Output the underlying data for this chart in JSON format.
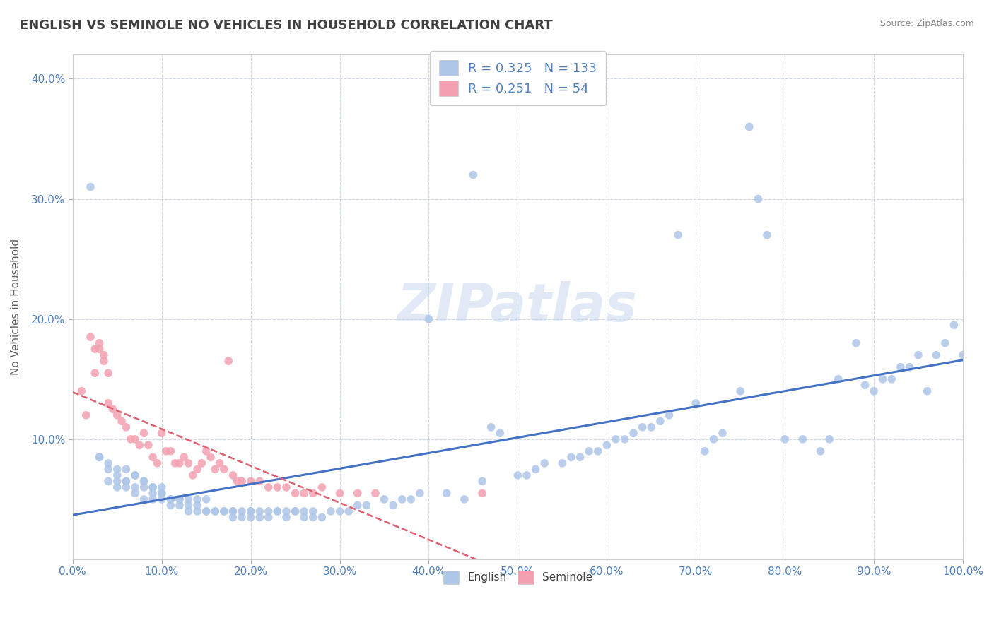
{
  "title": "ENGLISH VS SEMINOLE NO VEHICLES IN HOUSEHOLD CORRELATION CHART",
  "source": "Source: ZipAtlas.com",
  "ylabel": "No Vehicles in Household",
  "xlim": [
    0.0,
    1.0
  ],
  "ylim": [
    0.0,
    0.42
  ],
  "xtick_labels": [
    "0.0%",
    "10.0%",
    "20.0%",
    "30.0%",
    "40.0%",
    "50.0%",
    "60.0%",
    "70.0%",
    "80.0%",
    "90.0%",
    "100.0%"
  ],
  "xtick_vals": [
    0.0,
    0.1,
    0.2,
    0.3,
    0.4,
    0.5,
    0.6,
    0.7,
    0.8,
    0.9,
    1.0
  ],
  "ytick_labels": [
    "10.0%",
    "20.0%",
    "30.0%",
    "40.0%"
  ],
  "ytick_vals": [
    0.1,
    0.2,
    0.3,
    0.4
  ],
  "english_R": 0.325,
  "english_N": 133,
  "seminole_R": 0.251,
  "seminole_N": 54,
  "english_color": "#aec6e8",
  "seminole_color": "#f4a0b0",
  "english_line_color": "#4472c4",
  "seminole_line_color": "#e06070",
  "grid_color": "#d0d8e8",
  "title_color": "#404040",
  "axis_label_color": "#606060",
  "tick_color": "#5080c0",
  "watermark": "ZIPatlas",
  "english_x": [
    0.02,
    0.03,
    0.04,
    0.04,
    0.05,
    0.05,
    0.05,
    0.06,
    0.06,
    0.06,
    0.07,
    0.07,
    0.07,
    0.08,
    0.08,
    0.08,
    0.09,
    0.09,
    0.09,
    0.1,
    0.1,
    0.1,
    0.11,
    0.11,
    0.12,
    0.12,
    0.13,
    0.13,
    0.14,
    0.14,
    0.15,
    0.15,
    0.16,
    0.17,
    0.18,
    0.18,
    0.19,
    0.2,
    0.2,
    0.21,
    0.22,
    0.23,
    0.24,
    0.25,
    0.26,
    0.27,
    0.28,
    0.29,
    0.3,
    0.31,
    0.32,
    0.33,
    0.35,
    0.36,
    0.37,
    0.38,
    0.39,
    0.4,
    0.42,
    0.44,
    0.45,
    0.46,
    0.47,
    0.48,
    0.5,
    0.51,
    0.52,
    0.53,
    0.55,
    0.56,
    0.57,
    0.58,
    0.59,
    0.6,
    0.61,
    0.62,
    0.63,
    0.64,
    0.65,
    0.66,
    0.67,
    0.68,
    0.7,
    0.71,
    0.72,
    0.73,
    0.75,
    0.76,
    0.77,
    0.78,
    0.8,
    0.82,
    0.84,
    0.85,
    0.86,
    0.88,
    0.89,
    0.9,
    0.91,
    0.92,
    0.93,
    0.94,
    0.95,
    0.96,
    0.97,
    0.98,
    0.99,
    1.0,
    0.03,
    0.04,
    0.05,
    0.06,
    0.07,
    0.08,
    0.09,
    0.1,
    0.11,
    0.12,
    0.13,
    0.14,
    0.15,
    0.16,
    0.17,
    0.18,
    0.19,
    0.2,
    0.21,
    0.22,
    0.23,
    0.24,
    0.25,
    0.26,
    0.27
  ],
  "english_y": [
    0.31,
    0.085,
    0.065,
    0.08,
    0.065,
    0.075,
    0.06,
    0.06,
    0.065,
    0.075,
    0.055,
    0.06,
    0.07,
    0.05,
    0.06,
    0.065,
    0.05,
    0.055,
    0.06,
    0.05,
    0.055,
    0.06,
    0.045,
    0.05,
    0.045,
    0.05,
    0.04,
    0.05,
    0.04,
    0.05,
    0.04,
    0.05,
    0.04,
    0.04,
    0.035,
    0.04,
    0.035,
    0.035,
    0.04,
    0.035,
    0.035,
    0.04,
    0.035,
    0.04,
    0.035,
    0.04,
    0.035,
    0.04,
    0.04,
    0.04,
    0.045,
    0.045,
    0.05,
    0.045,
    0.05,
    0.05,
    0.055,
    0.2,
    0.055,
    0.05,
    0.32,
    0.065,
    0.11,
    0.105,
    0.07,
    0.07,
    0.075,
    0.08,
    0.08,
    0.085,
    0.085,
    0.09,
    0.09,
    0.095,
    0.1,
    0.1,
    0.105,
    0.11,
    0.11,
    0.115,
    0.12,
    0.27,
    0.13,
    0.09,
    0.1,
    0.105,
    0.14,
    0.36,
    0.3,
    0.27,
    0.1,
    0.1,
    0.09,
    0.1,
    0.15,
    0.18,
    0.145,
    0.14,
    0.15,
    0.15,
    0.16,
    0.16,
    0.17,
    0.14,
    0.17,
    0.18,
    0.195,
    0.17,
    0.085,
    0.075,
    0.07,
    0.065,
    0.07,
    0.065,
    0.06,
    0.055,
    0.05,
    0.05,
    0.045,
    0.045,
    0.04,
    0.04,
    0.04,
    0.04,
    0.04,
    0.04,
    0.04,
    0.04,
    0.04,
    0.04,
    0.04,
    0.04,
    0.035
  ],
  "seminole_x": [
    0.01,
    0.015,
    0.02,
    0.025,
    0.025,
    0.03,
    0.03,
    0.035,
    0.035,
    0.04,
    0.04,
    0.045,
    0.05,
    0.055,
    0.06,
    0.065,
    0.07,
    0.075,
    0.08,
    0.085,
    0.09,
    0.095,
    0.1,
    0.105,
    0.11,
    0.115,
    0.12,
    0.125,
    0.13,
    0.135,
    0.14,
    0.145,
    0.15,
    0.155,
    0.16,
    0.165,
    0.17,
    0.175,
    0.18,
    0.185,
    0.19,
    0.2,
    0.21,
    0.22,
    0.23,
    0.24,
    0.25,
    0.26,
    0.27,
    0.28,
    0.3,
    0.32,
    0.34,
    0.46
  ],
  "seminole_y": [
    0.14,
    0.12,
    0.185,
    0.155,
    0.175,
    0.18,
    0.175,
    0.17,
    0.165,
    0.155,
    0.13,
    0.125,
    0.12,
    0.115,
    0.11,
    0.1,
    0.1,
    0.095,
    0.105,
    0.095,
    0.085,
    0.08,
    0.105,
    0.09,
    0.09,
    0.08,
    0.08,
    0.085,
    0.08,
    0.07,
    0.075,
    0.08,
    0.09,
    0.085,
    0.075,
    0.08,
    0.075,
    0.165,
    0.07,
    0.065,
    0.065,
    0.065,
    0.065,
    0.06,
    0.06,
    0.06,
    0.055,
    0.055,
    0.055,
    0.06,
    0.055,
    0.055,
    0.055,
    0.055
  ]
}
